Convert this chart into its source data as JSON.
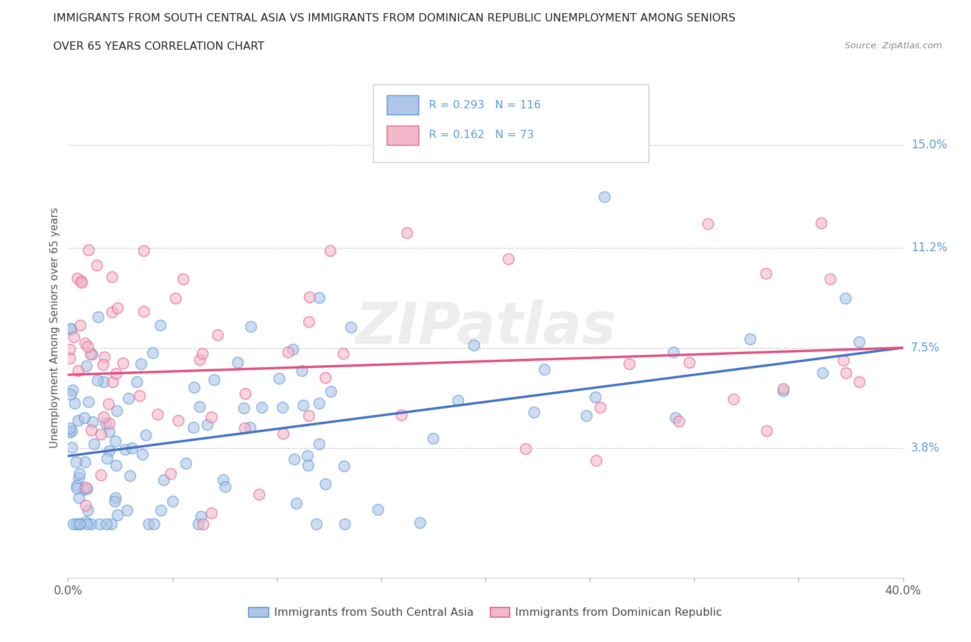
{
  "title_line1": "IMMIGRANTS FROM SOUTH CENTRAL ASIA VS IMMIGRANTS FROM DOMINICAN REPUBLIC UNEMPLOYMENT AMONG SENIORS",
  "title_line2": "OVER 65 YEARS CORRELATION CHART",
  "source_text": "Source: ZipAtlas.com",
  "ylabel": "Unemployment Among Seniors over 65 years",
  "xlim": [
    0.0,
    0.4
  ],
  "ylim": [
    -0.01,
    0.175
  ],
  "xticks": [
    0.0,
    0.05,
    0.1,
    0.15,
    0.2,
    0.25,
    0.3,
    0.35,
    0.4
  ],
  "xticklabels": [
    "0.0%",
    "",
    "",
    "",
    "",
    "",
    "",
    "",
    "40.0%"
  ],
  "ytick_positions": [
    0.038,
    0.075,
    0.112,
    0.15
  ],
  "ytick_labels": [
    "3.8%",
    "7.5%",
    "11.2%",
    "15.0%"
  ],
  "blue_face_color": "#aec6e8",
  "blue_edge_color": "#5b9bd5",
  "pink_face_color": "#f4b8c8",
  "pink_edge_color": "#e06090",
  "blue_line_color": "#4472c4",
  "pink_line_color": "#e05080",
  "legend_text1": "R = 0.293   N = 116",
  "legend_text2": "R = 0.162   N = 73",
  "legend_label1": "Immigrants from South Central Asia",
  "legend_label2": "Immigrants from Dominican Republic",
  "watermark": "ZIPatlas",
  "blue_R": 0.293,
  "pink_R": 0.162,
  "blue_intercept": 0.035,
  "blue_slope": 0.1,
  "pink_intercept": 0.065,
  "pink_slope": 0.025
}
